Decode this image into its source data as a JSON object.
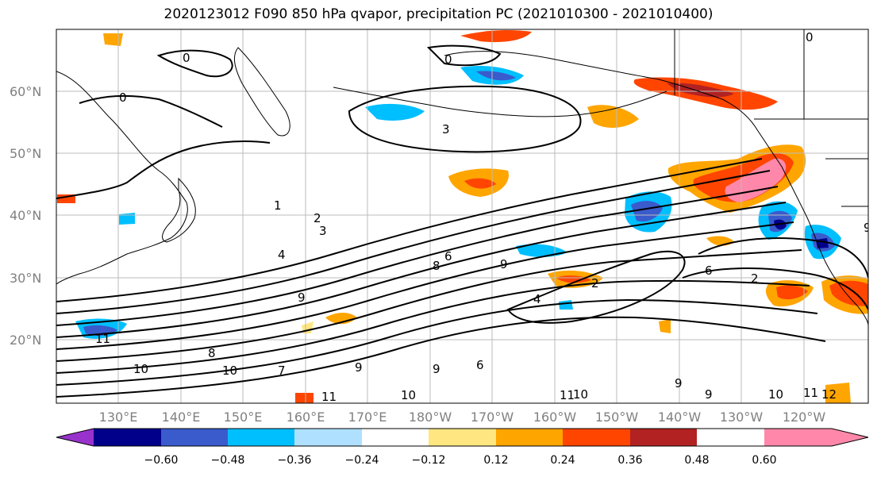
{
  "title": "2020123012 F090 850 hPa qvapor, precipitation PC (2021010300 - 2021010400)",
  "lat_labels": [
    "60°N",
    "50°N",
    "40°N",
    "30°N",
    "20°N"
  ],
  "lon_labels": [
    "130°E",
    "140°E",
    "150°E",
    "160°E",
    "170°E",
    "180°W",
    "170°W",
    "160°W",
    "150°W",
    "140°W",
    "130°W",
    "120°W"
  ],
  "colorbar": {
    "colors": [
      "#9932cc",
      "#00008b",
      "#3a5bcc",
      "#00bfff",
      "#b0e0ff",
      "#ffffff",
      "#ffe680",
      "#ffa500",
      "#ff4500",
      "#b22222",
      "#ff88aa"
    ],
    "tick_labels": [
      "−0.60",
      "−0.48",
      "−0.36",
      "−0.24",
      "−0.12",
      "0.12",
      "0.24",
      "0.36",
      "0.48",
      "0.60"
    ]
  },
  "contour_labels": [
    "0",
    "0",
    "0",
    "0",
    "3",
    "1",
    "2",
    "3",
    "4",
    "6",
    "8",
    "9",
    "9",
    "4",
    "2",
    "6",
    "2",
    "9",
    "11",
    "10",
    "10",
    "8",
    "7",
    "9",
    "9",
    "6",
    "11",
    "10",
    "11",
    "10",
    "9",
    "9",
    "10",
    "11",
    "12"
  ]
}
